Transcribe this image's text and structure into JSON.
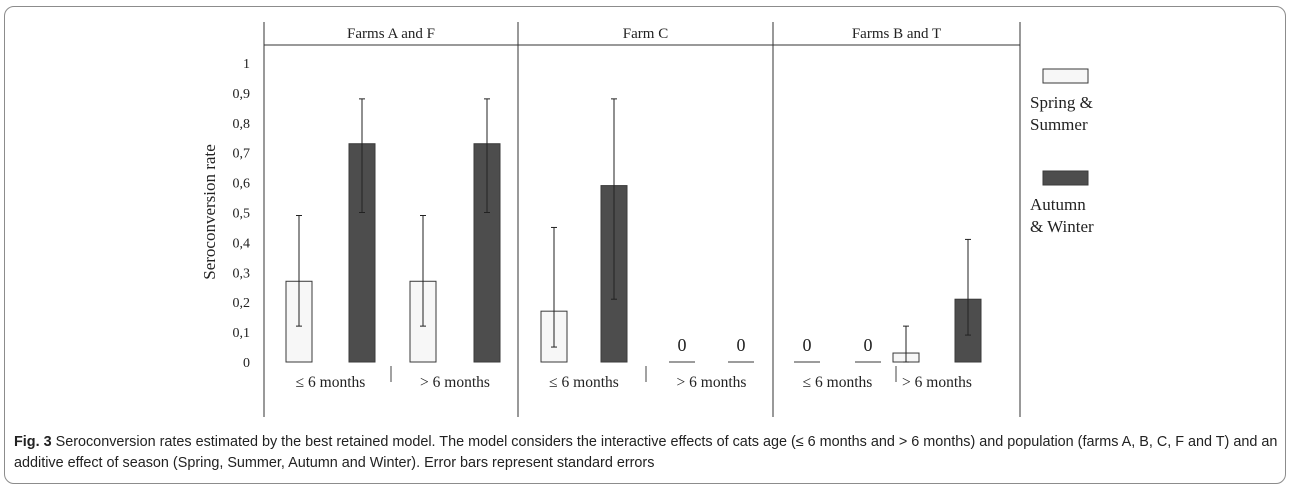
{
  "caption": {
    "label": "Fig. 3",
    "text": " Seroconversion rates estimated by the best retained model. The model considers the interactive effects of cats age (≤ 6 months and > 6 months) and population (farms A, B, C, F and T) and an additive effect of season (Spring, Summer, Autumn and Winter). Error bars represent standard errors"
  },
  "colors": {
    "spring_summer": "#f7f7f7",
    "autumn_winter": "#4d4d4d",
    "outline": "#3a3a3a"
  },
  "chart_data": {
    "type": "bar",
    "title": "",
    "ylabel": "Seroconversion rate",
    "ylim": [
      0,
      1
    ],
    "yticks": [
      "0",
      "0,1",
      "0,2",
      "0,3",
      "0,4",
      "0,5",
      "0,6",
      "0,7",
      "0,8",
      "0,9",
      "1"
    ],
    "grid": false,
    "legend_position": "right",
    "series": [
      {
        "name": "Spring & Summer",
        "name_lines": [
          "Spring &",
          "Summer"
        ],
        "color": "#f7f7f7"
      },
      {
        "name": "Autumn & Winter",
        "name_lines": [
          "Autumn",
          "& Winter"
        ],
        "color": "#4d4d4d"
      }
    ],
    "panels": [
      {
        "name": "Farms A and F",
        "groups": [
          {
            "label": "≤ 6 months",
            "values": [
              0.27,
              0.73
            ],
            "err_low": [
              0.12,
              0.5
            ],
            "err_high": [
              0.49,
              0.88
            ],
            "value_labels": [
              "",
              ""
            ]
          },
          {
            "label": "> 6 months",
            "values": [
              0.27,
              0.73
            ],
            "err_low": [
              0.12,
              0.5
            ],
            "err_high": [
              0.49,
              0.88
            ],
            "value_labels": [
              "",
              ""
            ]
          }
        ]
      },
      {
        "name": "Farm C",
        "groups": [
          {
            "label": "≤ 6 months",
            "values": [
              0.17,
              0.59
            ],
            "err_low": [
              0.05,
              0.21
            ],
            "err_high": [
              0.45,
              0.88
            ],
            "value_labels": [
              "",
              ""
            ]
          },
          {
            "label": "> 6 months",
            "values": [
              0,
              0
            ],
            "err_low": [
              null,
              null
            ],
            "err_high": [
              null,
              null
            ],
            "value_labels": [
              "0",
              "0"
            ]
          }
        ]
      },
      {
        "name": "Farms B and T",
        "groups": [
          {
            "label": "≤ 6 months",
            "values": [
              0,
              0
            ],
            "err_low": [
              null,
              null
            ],
            "err_high": [
              null,
              null
            ],
            "value_labels": [
              "0",
              "0"
            ]
          },
          {
            "label": "> 6 months",
            "values": [
              0.03,
              0.21
            ],
            "err_low": [
              0.0,
              0.09
            ],
            "err_high": [
              0.12,
              0.41
            ],
            "value_labels": [
              "",
              ""
            ]
          }
        ]
      }
    ]
  }
}
